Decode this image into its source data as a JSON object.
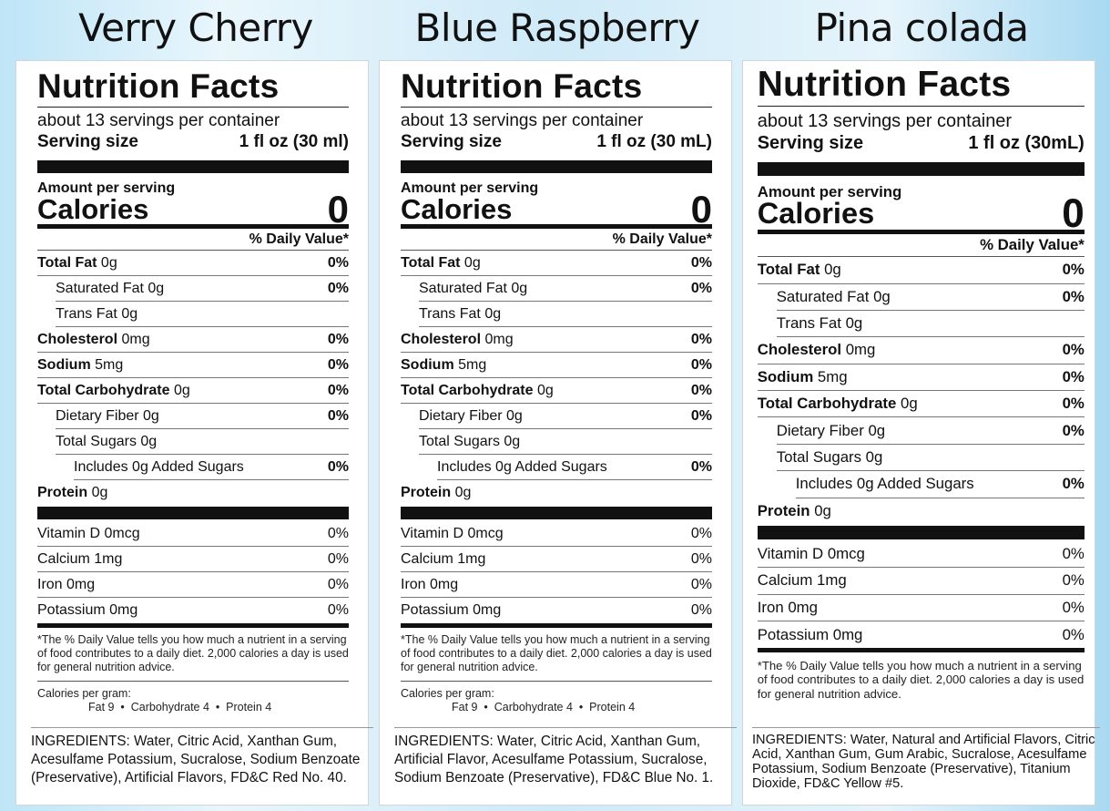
{
  "panels": [
    {
      "name": "Verry Cherry",
      "title": "Nutrition Facts",
      "servings": "about 13 servings per container",
      "serving_size_label": "Serving size",
      "serving_size": "1 fl oz (30 ml)",
      "amount_label": "Amount per serving",
      "calories_label": "Calories",
      "calories": "0",
      "dv_header": "% Daily Value*",
      "rows": [
        {
          "b": "Total Fat",
          "a": " 0g",
          "dv": "0%",
          "i": 0
        },
        {
          "b": "",
          "a": "Saturated Fat 0g",
          "dv": "0%",
          "i": 1
        },
        {
          "b": "",
          "a": "Trans Fat 0g",
          "dv": "",
          "i": 1
        },
        {
          "b": "Cholesterol",
          "a": " 0mg",
          "dv": "0%",
          "i": 0
        },
        {
          "b": "Sodium",
          "a": " 5mg",
          "dv": "0%",
          "i": 0
        },
        {
          "b": "Total Carbohydrate",
          "a": " 0g",
          "dv": "0%",
          "i": 0
        },
        {
          "b": "",
          "a": "Dietary Fiber 0g",
          "dv": "0%",
          "i": 1
        },
        {
          "b": "",
          "a": "Total Sugars 0g",
          "dv": "",
          "i": 1
        },
        {
          "b": "",
          "a": "Includes 0g Added Sugars",
          "dv": "0%",
          "i": 2
        },
        {
          "b": "Protein",
          "a": " 0g",
          "dv": "",
          "i": 0
        }
      ],
      "vitamins": [
        {
          "a": "Vitamin D 0mcg",
          "dv": "0%"
        },
        {
          "a": "Calcium 1mg",
          "dv": "0%"
        },
        {
          "a": "Iron 0mg",
          "dv": "0%"
        },
        {
          "a": "Potassium 0mg",
          "dv": "0%"
        }
      ],
      "footnote": "*The % Daily Value tells you how much a nutrient in a serving of food contributes to a daily diet. 2,000 calories a day is used for general nutrition advice.",
      "cal_per_gram": "Calories per gram:",
      "cal_per_gram_values": "Fat 9  •  Carbohydrate 4  •  Protein 4",
      "ingredients": "INGREDIENTS: Water, Citric Acid, Xanthan Gum, Acesulfame Potassium, Sucralose, Sodium Benzoate (Preservative), Artificial Flavors, FD&C Red No. 40."
    },
    {
      "name": "Blue Raspberry",
      "title": "Nutrition Facts",
      "servings": "about 13 servings per container",
      "serving_size_label": "Serving size",
      "serving_size": "1 fl oz (30 mL)",
      "amount_label": "Amount per serving",
      "calories_label": "Calories",
      "calories": "0",
      "dv_header": "% Daily Value*",
      "rows": [
        {
          "b": "Total Fat",
          "a": " 0g",
          "dv": "0%",
          "i": 0
        },
        {
          "b": "",
          "a": "Saturated Fat 0g",
          "dv": "0%",
          "i": 1
        },
        {
          "b": "",
          "a": "Trans Fat 0g",
          "dv": "",
          "i": 1
        },
        {
          "b": "Cholesterol",
          "a": " 0mg",
          "dv": "0%",
          "i": 0
        },
        {
          "b": "Sodium",
          "a": " 5mg",
          "dv": "0%",
          "i": 0
        },
        {
          "b": "Total Carbohydrate",
          "a": " 0g",
          "dv": "0%",
          "i": 0
        },
        {
          "b": "",
          "a": "Dietary Fiber 0g",
          "dv": "0%",
          "i": 1
        },
        {
          "b": "",
          "a": "Total Sugars 0g",
          "dv": "",
          "i": 1
        },
        {
          "b": "",
          "a": "Includes 0g Added Sugars",
          "dv": "0%",
          "i": 2
        },
        {
          "b": "Protein",
          "a": " 0g",
          "dv": "",
          "i": 0
        }
      ],
      "vitamins": [
        {
          "a": "Vitamin D 0mcg",
          "dv": "0%"
        },
        {
          "a": "Calcium 1mg",
          "dv": "0%"
        },
        {
          "a": "Iron 0mg",
          "dv": "0%"
        },
        {
          "a": "Potassium 0mg",
          "dv": "0%"
        }
      ],
      "footnote": "*The % Daily Value tells you how much a nutrient in a serving of food contributes to a daily diet. 2,000 calories a day is used for general nutrition advice.",
      "cal_per_gram": "Calories per gram:",
      "cal_per_gram_values": "Fat 9  •  Carbohydrate 4  •  Protein 4",
      "ingredients": "INGREDIENTS: Water, Citric Acid, Xanthan Gum, Artificial Flavor, Acesulfame Potassium, Sucralose, Sodium Benzoate (Preservative), FD&C Blue No. 1."
    },
    {
      "name": "Pina colada",
      "title": "Nutrition Facts",
      "servings": "about 13 servings per container",
      "serving_size_label": "Serving size",
      "serving_size": "1 fl oz (30mL)",
      "amount_label": "Amount per serving",
      "calories_label": "Calories",
      "calories": "0",
      "dv_header": "% Daily Value*",
      "rows": [
        {
          "b": "Total Fat",
          "a": " 0g",
          "dv": "0%",
          "i": 0
        },
        {
          "b": "",
          "a": "Saturated Fat 0g",
          "dv": "0%",
          "i": 1
        },
        {
          "b": "",
          "a": "Trans Fat 0g",
          "dv": "",
          "i": 1
        },
        {
          "b": "Cholesterol",
          "a": " 0mg",
          "dv": "0%",
          "i": 0
        },
        {
          "b": "Sodium",
          "a": " 5mg",
          "dv": "0%",
          "i": 0
        },
        {
          "b": "Total Carbohydrate",
          "a": " 0g",
          "dv": "0%",
          "i": 0
        },
        {
          "b": "",
          "a": "Dietary Fiber 0g",
          "dv": "0%",
          "i": 1
        },
        {
          "b": "",
          "a": "Total Sugars 0g",
          "dv": "",
          "i": 1
        },
        {
          "b": "",
          "a": "Includes 0g Added Sugars",
          "dv": "0%",
          "i": 2
        },
        {
          "b": "Protein",
          "a": " 0g",
          "dv": "",
          "i": 0
        }
      ],
      "vitamins": [
        {
          "a": "Vitamin D 0mcg",
          "dv": "0%"
        },
        {
          "a": "Calcium 1mg",
          "dv": "0%"
        },
        {
          "a": "Iron 0mg",
          "dv": "0%"
        },
        {
          "a": "Potassium 0mg",
          "dv": "0%"
        }
      ],
      "footnote": "*The % Daily Value tells you how much a nutrient in a serving of food contributes to a daily diet. 2,000 calories a day is used for general nutrition advice.",
      "ingredients": "INGREDIENTS: Water, Natural and Artificial Flavors, Citric Acid, Xanthan Gum, Gum Arabic, Sucralose, Acesulfame Potassium, Sodium Benzoate (Preservative), Titanium Dioxide, FD&C Yellow #5."
    }
  ]
}
